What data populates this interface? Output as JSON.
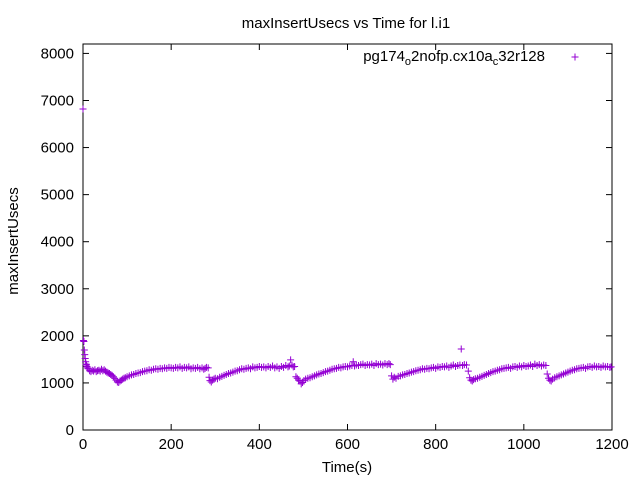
{
  "chart_data": {
    "type": "scatter",
    "title": "maxInsertUsecs vs Time for l.i1",
    "xlabel": "Time(s)",
    "ylabel": "maxInsertUsecs",
    "xlim": [
      0,
      1200
    ],
    "ylim": [
      0,
      8200
    ],
    "xticks": [
      0,
      200,
      400,
      600,
      800,
      1000,
      1200
    ],
    "yticks": [
      0,
      1000,
      2000,
      3000,
      4000,
      5000,
      6000,
      7000,
      8000
    ],
    "grid": false,
    "legend_position": "top-right",
    "marker": "+",
    "series": [
      {
        "name": "pg174_o2nofp.cx10a_c32r128",
        "legend_parts": [
          {
            "text": "pg174",
            "sub": false
          },
          {
            "text": "o",
            "sub": true
          },
          {
            "text": "2nofp.cx10a",
            "sub": false
          },
          {
            "text": "c",
            "sub": true
          },
          {
            "text": "32r128",
            "sub": false
          }
        ],
        "color": "#9400d3",
        "points": [
          [
            0,
            6820
          ],
          [
            1,
            1900
          ],
          [
            2,
            1880
          ],
          [
            3,
            1700
          ],
          [
            4,
            1600
          ],
          [
            5,
            1520
          ],
          [
            6,
            1450
          ],
          [
            7,
            1400
          ],
          [
            8,
            1380
          ],
          [
            9,
            1350
          ],
          [
            10,
            1320
          ],
          [
            12,
            1300
          ],
          [
            15,
            1260
          ],
          [
            18,
            1240
          ],
          [
            21,
            1270
          ],
          [
            24,
            1250
          ],
          [
            27,
            1280
          ],
          [
            30,
            1240
          ],
          [
            33,
            1260
          ],
          [
            36,
            1270
          ],
          [
            39,
            1250
          ],
          [
            42,
            1290
          ],
          [
            45,
            1260
          ],
          [
            48,
            1280
          ],
          [
            51,
            1250
          ],
          [
            54,
            1230
          ],
          [
            57,
            1210
          ],
          [
            60,
            1200
          ],
          [
            63,
            1180
          ],
          [
            66,
            1160
          ],
          [
            69,
            1130
          ],
          [
            72,
            1100
          ],
          [
            75,
            1060
          ],
          [
            78,
            1020
          ],
          [
            81,
            1010
          ],
          [
            84,
            1040
          ],
          [
            87,
            1060
          ],
          [
            90,
            1080
          ],
          [
            93,
            1100
          ],
          [
            96,
            1110
          ],
          [
            100,
            1130
          ],
          [
            105,
            1150
          ],
          [
            110,
            1170
          ],
          [
            115,
            1180
          ],
          [
            120,
            1200
          ],
          [
            125,
            1210
          ],
          [
            130,
            1220
          ],
          [
            135,
            1240
          ],
          [
            140,
            1250
          ],
          [
            145,
            1260
          ],
          [
            150,
            1280
          ],
          [
            155,
            1270
          ],
          [
            160,
            1290
          ],
          [
            165,
            1300
          ],
          [
            170,
            1290
          ],
          [
            175,
            1310
          ],
          [
            180,
            1300
          ],
          [
            185,
            1320
          ],
          [
            190,
            1310
          ],
          [
            195,
            1330
          ],
          [
            200,
            1320
          ],
          [
            205,
            1310
          ],
          [
            210,
            1330
          ],
          [
            215,
            1320
          ],
          [
            220,
            1340
          ],
          [
            225,
            1310
          ],
          [
            230,
            1330
          ],
          [
            235,
            1320
          ],
          [
            240,
            1340
          ],
          [
            245,
            1300
          ],
          [
            250,
            1320
          ],
          [
            255,
            1310
          ],
          [
            260,
            1330
          ],
          [
            265,
            1300
          ],
          [
            270,
            1320
          ],
          [
            274,
            1290
          ],
          [
            277,
            1310
          ],
          [
            280,
            1330
          ],
          [
            284,
            1320
          ],
          [
            286,
            1120
          ],
          [
            288,
            1050
          ],
          [
            291,
            1020
          ],
          [
            294,
            1060
          ],
          [
            297,
            1080
          ],
          [
            300,
            1100
          ],
          [
            305,
            1090
          ],
          [
            310,
            1120
          ],
          [
            315,
            1140
          ],
          [
            320,
            1160
          ],
          [
            325,
            1180
          ],
          [
            330,
            1200
          ],
          [
            335,
            1210
          ],
          [
            340,
            1230
          ],
          [
            345,
            1250
          ],
          [
            350,
            1260
          ],
          [
            355,
            1280
          ],
          [
            360,
            1300
          ],
          [
            365,
            1290
          ],
          [
            370,
            1310
          ],
          [
            375,
            1320
          ],
          [
            380,
            1300
          ],
          [
            385,
            1340
          ],
          [
            390,
            1320
          ],
          [
            395,
            1330
          ],
          [
            400,
            1350
          ],
          [
            405,
            1330
          ],
          [
            410,
            1340
          ],
          [
            415,
            1320
          ],
          [
            420,
            1350
          ],
          [
            425,
            1330
          ],
          [
            430,
            1360
          ],
          [
            435,
            1320
          ],
          [
            440,
            1340
          ],
          [
            445,
            1310
          ],
          [
            450,
            1350
          ],
          [
            455,
            1330
          ],
          [
            460,
            1370
          ],
          [
            465,
            1340
          ],
          [
            468,
            1360
          ],
          [
            471,
            1490
          ],
          [
            474,
            1380
          ],
          [
            477,
            1340
          ],
          [
            480,
            1350
          ],
          [
            483,
            1130
          ],
          [
            486,
            1100
          ],
          [
            489,
            1060
          ],
          [
            492,
            1040
          ],
          [
            495,
            980
          ],
          [
            498,
            1010
          ],
          [
            501,
            1050
          ],
          [
            505,
            1080
          ],
          [
            510,
            1100
          ],
          [
            515,
            1110
          ],
          [
            520,
            1130
          ],
          [
            525,
            1150
          ],
          [
            530,
            1170
          ],
          [
            535,
            1190
          ],
          [
            540,
            1200
          ],
          [
            545,
            1220
          ],
          [
            550,
            1240
          ],
          [
            555,
            1250
          ],
          [
            560,
            1270
          ],
          [
            565,
            1290
          ],
          [
            570,
            1300
          ],
          [
            575,
            1310
          ],
          [
            580,
            1330
          ],
          [
            585,
            1320
          ],
          [
            590,
            1340
          ],
          [
            595,
            1350
          ],
          [
            600,
            1340
          ],
          [
            605,
            1360
          ],
          [
            610,
            1370
          ],
          [
            613,
            1450
          ],
          [
            616,
            1360
          ],
          [
            620,
            1380
          ],
          [
            625,
            1370
          ],
          [
            630,
            1390
          ],
          [
            635,
            1400
          ],
          [
            640,
            1370
          ],
          [
            645,
            1390
          ],
          [
            650,
            1380
          ],
          [
            655,
            1400
          ],
          [
            660,
            1370
          ],
          [
            665,
            1410
          ],
          [
            670,
            1390
          ],
          [
            675,
            1400
          ],
          [
            680,
            1380
          ],
          [
            685,
            1410
          ],
          [
            690,
            1390
          ],
          [
            694,
            1410
          ],
          [
            697,
            1390
          ],
          [
            700,
            1150
          ],
          [
            703,
            1080
          ],
          [
            706,
            1120
          ],
          [
            710,
            1100
          ],
          [
            715,
            1140
          ],
          [
            720,
            1150
          ],
          [
            725,
            1170
          ],
          [
            730,
            1180
          ],
          [
            735,
            1200
          ],
          [
            740,
            1210
          ],
          [
            745,
            1230
          ],
          [
            750,
            1240
          ],
          [
            755,
            1260
          ],
          [
            760,
            1270
          ],
          [
            765,
            1280
          ],
          [
            770,
            1300
          ],
          [
            775,
            1290
          ],
          [
            780,
            1310
          ],
          [
            785,
            1300
          ],
          [
            790,
            1320
          ],
          [
            795,
            1330
          ],
          [
            800,
            1310
          ],
          [
            805,
            1340
          ],
          [
            810,
            1330
          ],
          [
            815,
            1350
          ],
          [
            820,
            1340
          ],
          [
            825,
            1360
          ],
          [
            830,
            1330
          ],
          [
            835,
            1360
          ],
          [
            840,
            1380
          ],
          [
            845,
            1350
          ],
          [
            850,
            1370
          ],
          [
            855,
            1380
          ],
          [
            858,
            1720
          ],
          [
            861,
            1370
          ],
          [
            865,
            1390
          ],
          [
            870,
            1380
          ],
          [
            874,
            1250
          ],
          [
            877,
            1110
          ],
          [
            880,
            1060
          ],
          [
            883,
            1040
          ],
          [
            886,
            1070
          ],
          [
            890,
            1090
          ],
          [
            895,
            1100
          ],
          [
            900,
            1120
          ],
          [
            905,
            1140
          ],
          [
            910,
            1160
          ],
          [
            915,
            1180
          ],
          [
            920,
            1200
          ],
          [
            925,
            1220
          ],
          [
            930,
            1240
          ],
          [
            935,
            1250
          ],
          [
            940,
            1270
          ],
          [
            945,
            1280
          ],
          [
            950,
            1300
          ],
          [
            955,
            1310
          ],
          [
            960,
            1320
          ],
          [
            965,
            1330
          ],
          [
            970,
            1310
          ],
          [
            975,
            1340
          ],
          [
            980,
            1350
          ],
          [
            985,
            1330
          ],
          [
            990,
            1360
          ],
          [
            995,
            1340
          ],
          [
            1000,
            1370
          ],
          [
            1005,
            1350
          ],
          [
            1010,
            1360
          ],
          [
            1015,
            1380
          ],
          [
            1020,
            1350
          ],
          [
            1025,
            1400
          ],
          [
            1030,
            1370
          ],
          [
            1035,
            1390
          ],
          [
            1040,
            1360
          ],
          [
            1045,
            1380
          ],
          [
            1050,
            1370
          ],
          [
            1053,
            1190
          ],
          [
            1056,
            1100
          ],
          [
            1059,
            1060
          ],
          [
            1062,
            1040
          ],
          [
            1065,
            1080
          ],
          [
            1070,
            1110
          ],
          [
            1075,
            1130
          ],
          [
            1080,
            1150
          ],
          [
            1085,
            1170
          ],
          [
            1090,
            1190
          ],
          [
            1095,
            1210
          ],
          [
            1100,
            1230
          ],
          [
            1105,
            1250
          ],
          [
            1110,
            1270
          ],
          [
            1115,
            1280
          ],
          [
            1120,
            1300
          ],
          [
            1125,
            1310
          ],
          [
            1130,
            1320
          ],
          [
            1135,
            1330
          ],
          [
            1140,
            1310
          ],
          [
            1145,
            1340
          ],
          [
            1150,
            1350
          ],
          [
            1155,
            1330
          ],
          [
            1160,
            1360
          ],
          [
            1165,
            1340
          ],
          [
            1170,
            1350
          ],
          [
            1175,
            1330
          ],
          [
            1180,
            1360
          ],
          [
            1185,
            1340
          ],
          [
            1190,
            1350
          ],
          [
            1195,
            1330
          ],
          [
            1198,
            1340
          ]
        ]
      }
    ]
  }
}
